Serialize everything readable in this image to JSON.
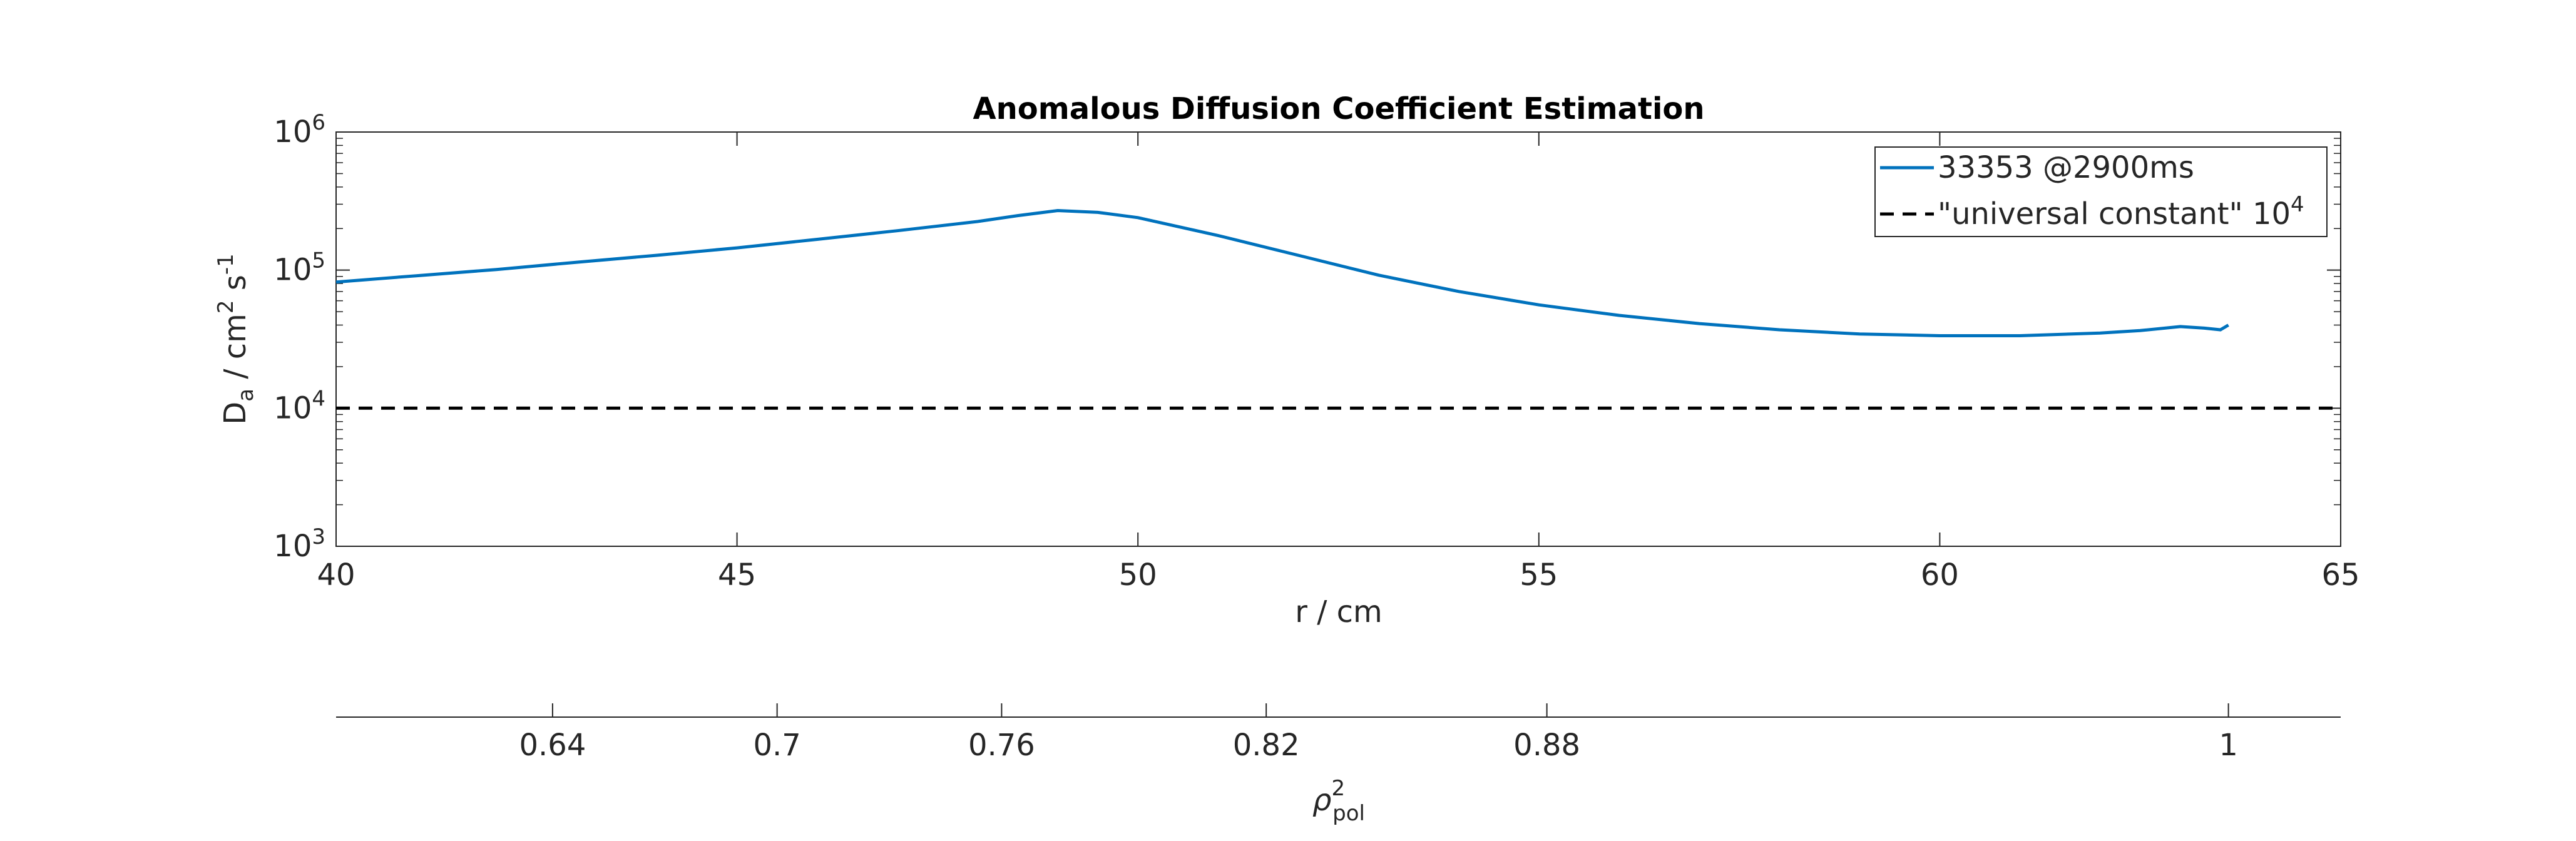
{
  "chart_data": {
    "type": "line",
    "title": "Anomalous Diffusion Coefficient Estimation",
    "xlabel": "r / cm",
    "ylabel": {
      "main": "D",
      "sub": "a",
      "rest": " / cm",
      "exp1": "2",
      "mid": " s",
      "exp2": "-1"
    },
    "xlim": [
      40,
      65
    ],
    "ylim": [
      1000,
      1000000
    ],
    "yscale": "log",
    "grid": false,
    "legend_position": "top-right",
    "x_ticks": [
      "40",
      "45",
      "50",
      "55",
      "60",
      "65"
    ],
    "y_ticks": [
      {
        "base": "10",
        "exp": "3"
      },
      {
        "base": "10",
        "exp": "4"
      },
      {
        "base": "10",
        "exp": "5"
      },
      {
        "base": "10",
        "exp": "6"
      }
    ],
    "series": [
      {
        "name": "33353 @2900ms",
        "color": "#0072bd",
        "style": "solid",
        "x": [
          40,
          41,
          42,
          43,
          44,
          45,
          46,
          47,
          48,
          48.5,
          49,
          49.5,
          50,
          51,
          52,
          53,
          54,
          55,
          56,
          57,
          58,
          59,
          60,
          61,
          62,
          62.5,
          63,
          63.3,
          63.5,
          63.6
        ],
        "y": [
          82000,
          91000,
          101000,
          114000,
          128000,
          145000,
          167000,
          193000,
          225000,
          248000,
          270000,
          262000,
          240000,
          178000,
          128000,
          92000,
          70000,
          56000,
          47000,
          41000,
          37000,
          34500,
          33500,
          33500,
          35000,
          36500,
          39000,
          38000,
          37000,
          40000
        ]
      },
      {
        "name": "\"universal constant\" 10",
        "name_exp": "4",
        "color": "#000000",
        "style": "dashed",
        "x": [
          40,
          65
        ],
        "y": [
          10000,
          10000
        ]
      }
    ],
    "secondary_axis": {
      "xlabel": {
        "main": "ρ",
        "sup": "2",
        "sub": "pol"
      },
      "ticks": [
        {
          "label": "0.64",
          "r": 42.7
        },
        {
          "label": "0.7",
          "r": 45.5
        },
        {
          "label": "0.76",
          "r": 48.3
        },
        {
          "label": "0.82",
          "r": 51.6
        },
        {
          "label": "0.88",
          "r": 55.1
        },
        {
          "label": "1",
          "r": 63.6
        }
      ]
    }
  }
}
